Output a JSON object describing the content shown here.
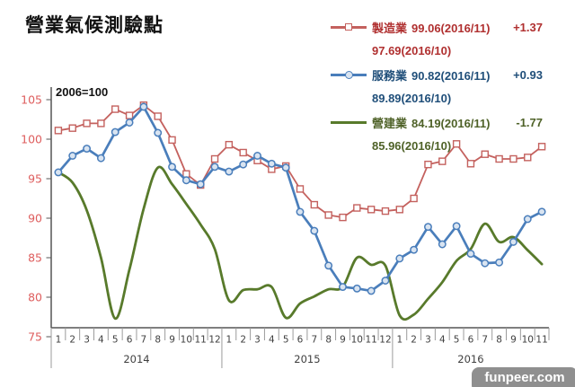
{
  "title": "營業氣候測驗點",
  "axis_note": "2006=100",
  "watermark": "funpeer.com",
  "colors": {
    "y_tick": "#DE5E5E",
    "axis": "#555555",
    "separator": "#9B9B9B",
    "month_label": "#3F3F3F",
    "year_label": "#3F3F3F",
    "axis_note": "#111111",
    "watermark_bg": "#8F8F8F",
    "watermark_text": "#FFFFFF",
    "legend_text": [
      "#B03030",
      "#1F4E79",
      "#4F6228"
    ]
  },
  "legend": [
    {
      "name": "製造業",
      "current": "99.06(2016/11)",
      "previous": "97.69(2016/10)",
      "change": "+1.37"
    },
    {
      "name": "服務業",
      "current": "90.82(2016/11)",
      "previous": "89.89(2016/10)",
      "change": "+0.93"
    },
    {
      "name": "營建業",
      "current": "84.19(2016/11)",
      "previous": "85.96(2016/10)",
      "change": "-1.77"
    }
  ],
  "chart_data": {
    "type": "line",
    "title": "營業氣候測驗點",
    "axis_note": "2006=100",
    "ylim": [
      75,
      105
    ],
    "ytick_step": 5,
    "grid": false,
    "legend_position": "top-right",
    "x_axis": {
      "years": [
        {
          "label": "2014",
          "months": [
            "1",
            "2",
            "3",
            "4",
            "5",
            "6",
            "7",
            "8",
            "9",
            "10",
            "11",
            "12"
          ]
        },
        {
          "label": "2015",
          "months": [
            "1",
            "2",
            "3",
            "4",
            "5",
            "6",
            "7",
            "8",
            "9",
            "10",
            "11",
            "12"
          ]
        },
        {
          "label": "2016",
          "months": [
            "1",
            "2",
            "3",
            "4",
            "5",
            "6",
            "7",
            "8",
            "9",
            "10",
            "11"
          ]
        }
      ]
    },
    "series": [
      {
        "name": "製造業",
        "marker": "square",
        "marker_fill": "#FFFFFF",
        "smooth": false,
        "color": "#C4615E",
        "values": [
          101.1,
          101.4,
          102.0,
          102.0,
          103.8,
          103.0,
          104.3,
          102.9,
          99.9,
          95.6,
          94.2,
          97.5,
          99.3,
          98.3,
          97.3,
          96.2,
          96.6,
          93.7,
          91.7,
          90.4,
          90.1,
          91.3,
          91.1,
          90.9,
          91.1,
          92.5,
          96.8,
          97.2,
          99.4,
          96.9,
          98.1,
          97.5,
          97.5,
          97.69,
          99.06
        ]
      },
      {
        "name": "服務業",
        "marker": "circle",
        "marker_fill": "#D9E4F1",
        "smooth": false,
        "color": "#4A7EBB",
        "values": [
          95.8,
          97.9,
          98.8,
          97.6,
          100.9,
          102.1,
          104.1,
          100.8,
          96.5,
          94.8,
          94.3,
          96.5,
          95.9,
          96.8,
          97.9,
          96.9,
          96.4,
          90.8,
          88.4,
          84.0,
          81.3,
          81.1,
          80.8,
          82.1,
          84.9,
          86.0,
          88.9,
          86.7,
          89.0,
          85.5,
          84.3,
          84.4,
          87.0,
          89.89,
          90.82
        ]
      },
      {
        "name": "營建業",
        "marker": "none",
        "marker_fill": "#FFFFFF",
        "smooth": true,
        "color": "#587A2B",
        "values": [
          95.8,
          94.5,
          91.0,
          85.0,
          77.3,
          83.5,
          91.2,
          96.4,
          94.3,
          91.8,
          89.2,
          86.1,
          79.6,
          80.9,
          81.0,
          81.3,
          77.4,
          79.2,
          80.1,
          81.0,
          81.3,
          85.0,
          84.1,
          84.0,
          77.7,
          77.8,
          79.8,
          81.9,
          84.6,
          86.1,
          89.3,
          87.0,
          87.6,
          85.96,
          84.19
        ]
      }
    ]
  }
}
